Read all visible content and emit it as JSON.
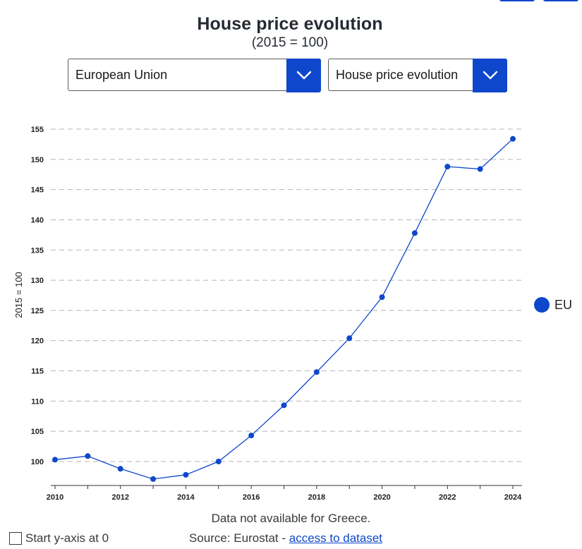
{
  "header": {
    "title": "House price evolution",
    "subtitle": "(2015 = 100)"
  },
  "controls": {
    "country_select": {
      "value": "European Union"
    },
    "indicator_select": {
      "value": "House price evolution"
    }
  },
  "colors": {
    "accent": "#0e47cb",
    "grid": "#b5b5b5",
    "text": "#262b33"
  },
  "chart_data": {
    "type": "line",
    "title": "House price evolution",
    "subtitle": "(2015 = 100)",
    "xlabel": "",
    "ylabel": "2015 = 100",
    "x": [
      2010,
      2011,
      2012,
      2013,
      2014,
      2015,
      2016,
      2017,
      2018,
      2019,
      2020,
      2021,
      2022,
      2023,
      2024
    ],
    "series": [
      {
        "name": "EU",
        "values": [
          100.3,
          100.9,
          98.8,
          97.1,
          97.8,
          100.0,
          104.3,
          109.3,
          114.8,
          120.4,
          127.2,
          137.8,
          148.8,
          148.4,
          153.4
        ]
      }
    ],
    "xticks": [
      "2010",
      "2012",
      "2014",
      "2016",
      "2018",
      "2020",
      "2022",
      "2024"
    ],
    "yticks": [
      100,
      105,
      110,
      115,
      120,
      125,
      130,
      135,
      140,
      145,
      150,
      155
    ],
    "xlim": [
      2010,
      2024
    ],
    "ylim": [
      96.3,
      155
    ],
    "grid": "horizontal dashed",
    "legend": "right"
  },
  "note": "Data not available for Greece.",
  "footer": {
    "checkbox_label": "Start y-axis at 0",
    "source_prefix": "Source: Eurostat - ",
    "source_link": "access to dataset"
  }
}
